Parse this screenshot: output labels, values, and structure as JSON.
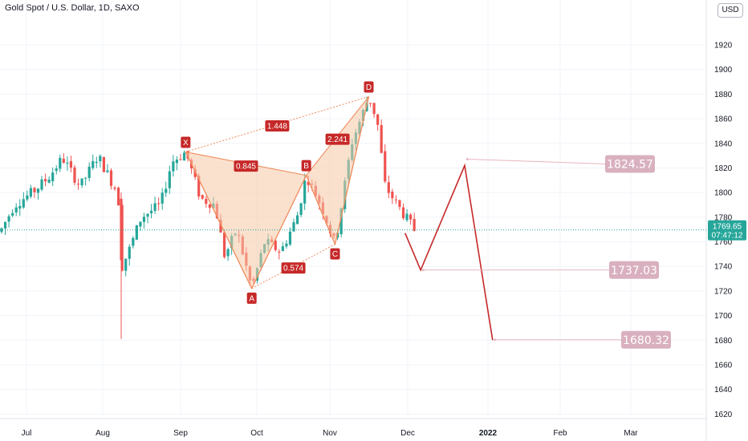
{
  "header": {
    "title": "Gold Spot / U.S. Dollar, 1D, SAXO"
  },
  "currency": "USD",
  "last_price": {
    "value": "1769.65",
    "countdown": "07:47:12"
  },
  "colors": {
    "up": "#26a69a",
    "down": "#ef5350",
    "pattern_fill": "#f6c8a5",
    "pattern_line": "#ef8a5a",
    "point_badge": "#c62828",
    "projection": "#c62828",
    "target_badge": "#d9b0bf",
    "last_price_badge": "#26a69a"
  },
  "chart_data": {
    "type": "candlestick",
    "title": "Gold Spot / U.S. Dollar, 1D, SAXO",
    "y_axis": {
      "ylim": [
        1615,
        1950
      ],
      "ticks": [
        1620,
        1640,
        1660,
        1680,
        1700,
        1720,
        1740,
        1760,
        1780,
        1800,
        1820,
        1840,
        1860,
        1880,
        1900,
        1920
      ],
      "position": "right"
    },
    "x_axis": {
      "ticks": [
        "Jul",
        "Aug",
        "Sep",
        "Oct",
        "Nov",
        "Dec",
        "2022",
        "Feb",
        "Mar"
      ]
    },
    "grid": true,
    "harmonic_pattern": {
      "points": [
        {
          "label": "X",
          "date": "Sep 3",
          "price": 1833
        },
        {
          "label": "A",
          "date": "Sep 29",
          "price": 1722
        },
        {
          "label": "B",
          "date": "Oct 22",
          "price": 1814
        },
        {
          "label": "C",
          "date": "Nov 3",
          "price": 1758
        },
        {
          "label": "D",
          "date": "Nov 16",
          "price": 1878
        }
      ],
      "ratios": [
        {
          "value": "0.845",
          "between": "XA-AB"
        },
        {
          "value": "0.574",
          "between": "AB-BC"
        },
        {
          "value": "2.241",
          "between": "BC-CD"
        },
        {
          "value": "1.448",
          "between": "XA-XD"
        }
      ]
    },
    "projection": {
      "path": [
        {
          "date": "Nov 30",
          "price": 1767
        },
        {
          "date": "Dec 6",
          "price": 1737
        },
        {
          "date": "Dec 23",
          "price": 1822
        },
        {
          "date": "Jan 3",
          "price": 1680
        }
      ]
    },
    "targets": [
      {
        "label": "1824.57",
        "value": 1824.57
      },
      {
        "label": "1737.03",
        "value": 1737.03
      },
      {
        "label": "1680.32",
        "value": 1680.32
      }
    ]
  }
}
